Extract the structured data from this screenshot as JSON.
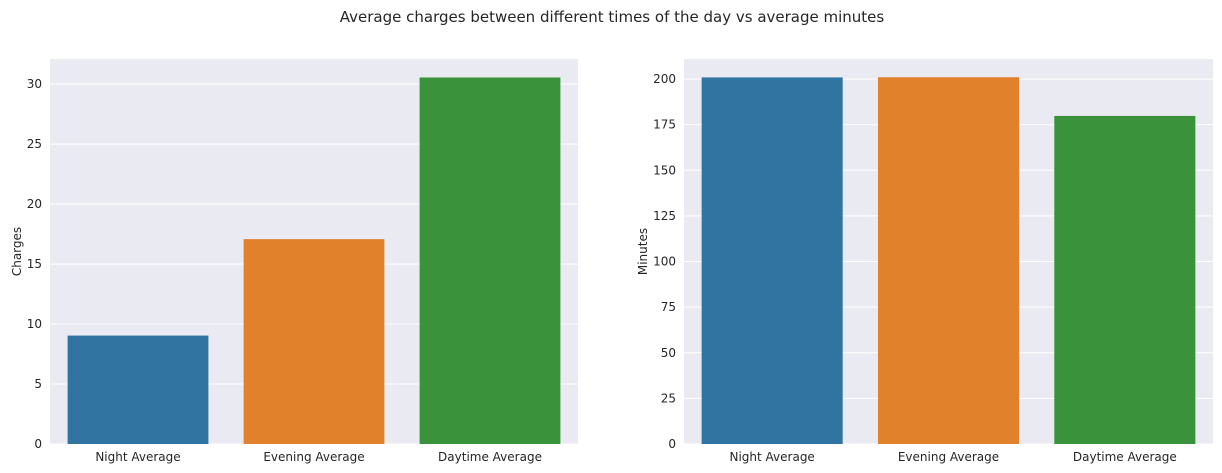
{
  "suptitle": "Average charges between different times of the day vs average minutes",
  "colors": {
    "axes_bg": "#eaeaf2",
    "grid": "#ffffff",
    "bar_colors": [
      "#3274a1",
      "#e1812c",
      "#3a923a"
    ]
  },
  "chart_data": [
    {
      "type": "bar",
      "categories": [
        "Night Average",
        "Evening Average",
        "Daytime Average"
      ],
      "values": [
        9.04,
        17.08,
        30.56
      ],
      "xlabel": "",
      "ylabel": "Charges",
      "ylim": [
        0,
        32.1
      ],
      "yticks": [
        0,
        5,
        10,
        15,
        20,
        25,
        30
      ],
      "grid": true
    },
    {
      "type": "bar",
      "categories": [
        "Night Average",
        "Evening Average",
        "Daytime Average"
      ],
      "values": [
        200.9,
        201.0,
        179.8
      ],
      "xlabel": "",
      "ylabel": "Minutes",
      "ylim": [
        0,
        211
      ],
      "yticks": [
        0,
        25,
        50,
        75,
        100,
        125,
        150,
        175,
        200
      ],
      "grid": true
    }
  ]
}
